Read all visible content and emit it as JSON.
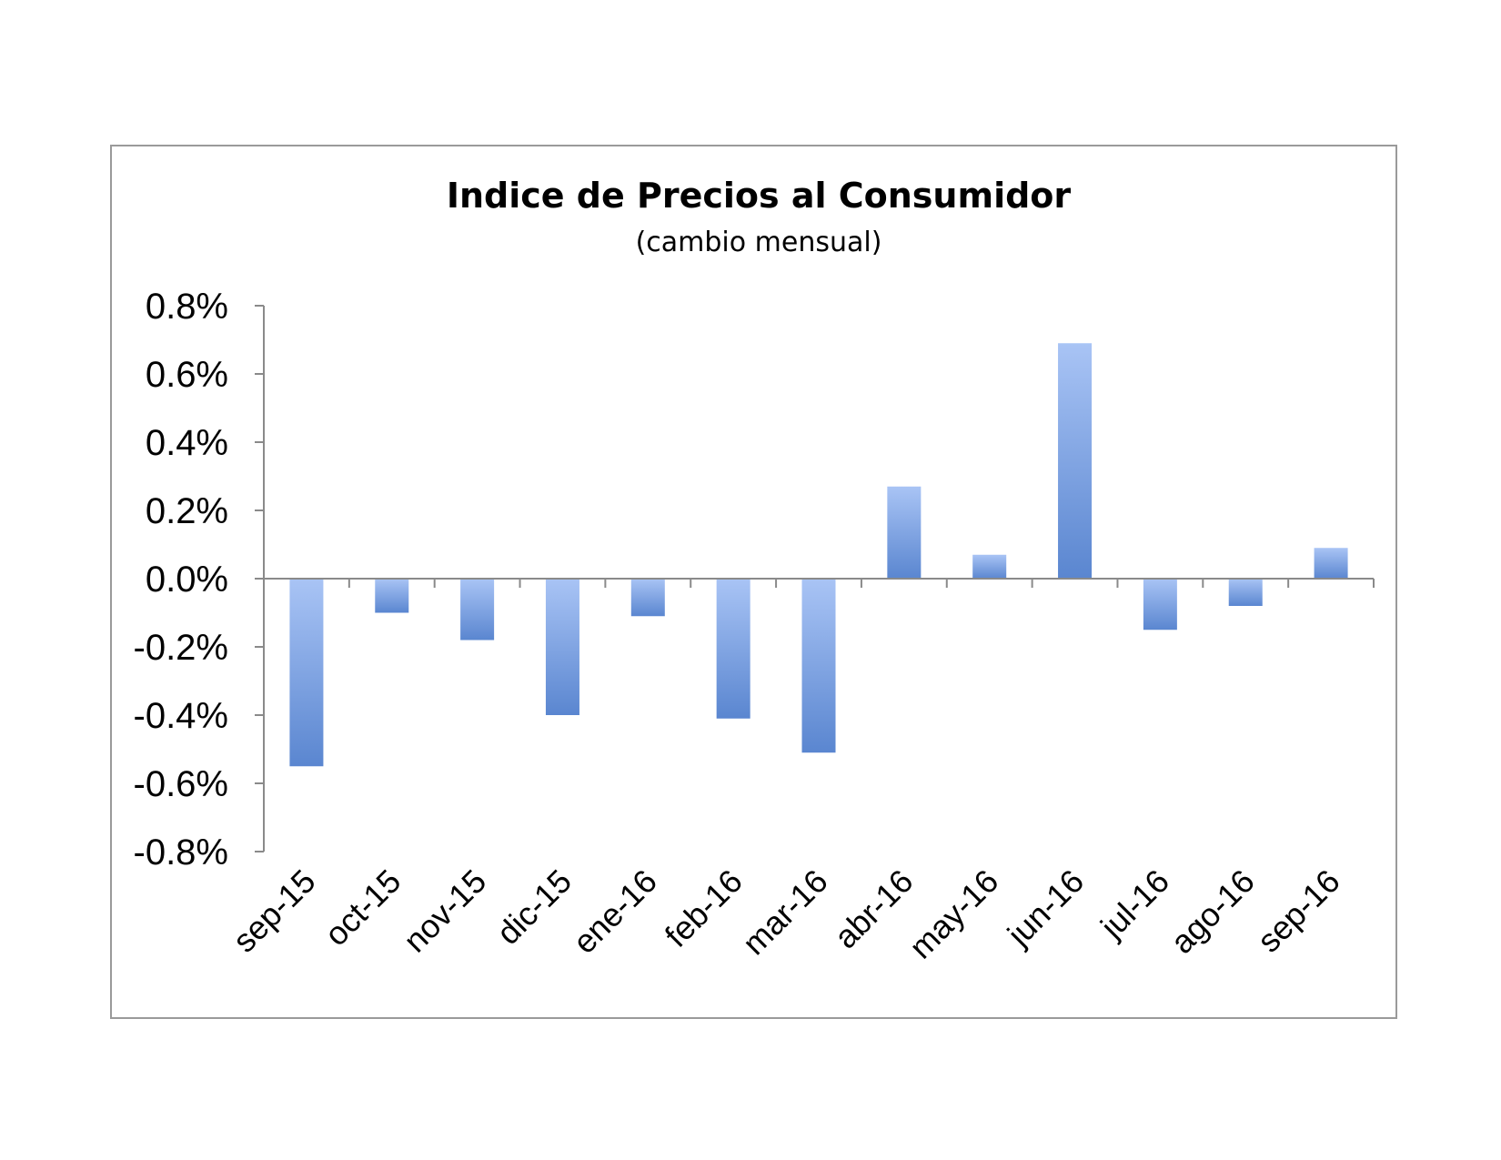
{
  "chart_data": {
    "type": "bar",
    "title": "Indice de Precios al Consumidor",
    "subtitle": "(cambio mensual)",
    "xlabel": "",
    "ylabel": "",
    "categories": [
      "sep-15",
      "oct-15",
      "nov-15",
      "dic-15",
      "ene-16",
      "feb-16",
      "mar-16",
      "abr-16",
      "may-16",
      "jun-16",
      "jul-16",
      "ago-16",
      "sep-16"
    ],
    "values": [
      -0.55,
      -0.1,
      -0.18,
      -0.4,
      -0.11,
      -0.41,
      -0.51,
      0.27,
      0.07,
      0.69,
      -0.15,
      -0.08,
      0.09
    ],
    "value_unit": "%",
    "ylim": [
      -0.8,
      0.8
    ],
    "yticks": [
      "0.8%",
      "0.6%",
      "0.4%",
      "0.2%",
      "0.0%",
      "-0.2%",
      "-0.4%",
      "-0.6%",
      "-0.8%"
    ],
    "ytick_values": [
      0.8,
      0.6,
      0.4,
      0.2,
      0.0,
      -0.2,
      -0.4,
      -0.6,
      -0.8
    ],
    "grid": false,
    "legend": "none",
    "colors": {
      "bar_light": "#a9c4f5",
      "bar_dark": "#5a86d0",
      "axis": "#8a8a8a",
      "frame": "#9a9a9a"
    }
  }
}
